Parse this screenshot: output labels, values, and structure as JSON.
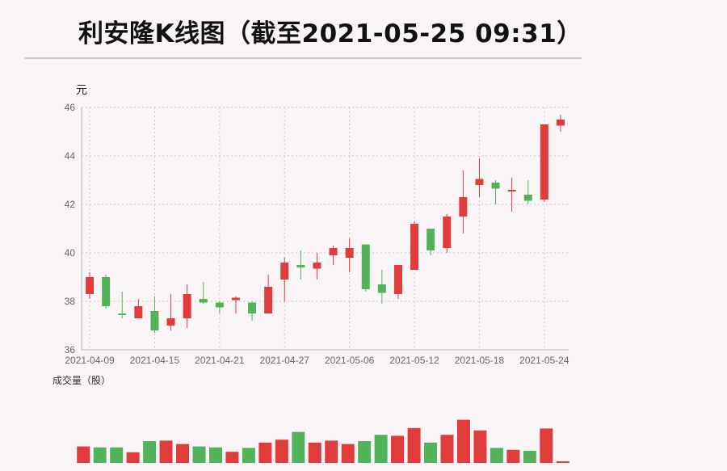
{
  "title": "利安隆K线图（截至2021-05-25 09:31）",
  "chart_data": {
    "type": "candlestick",
    "ylabel": "元",
    "volume_label": "成交量（股）",
    "ylim": [
      36,
      46
    ],
    "yticks": [
      36,
      38,
      40,
      42,
      44,
      46
    ],
    "xticks": [
      "2021-04-09",
      "2021-04-15",
      "2021-04-21",
      "2021-04-27",
      "2021-05-06",
      "2021-05-12",
      "2021-05-18",
      "2021-05-24"
    ],
    "colors": {
      "up": "#e03c3c",
      "down": "#52b35a"
    },
    "candles": [
      {
        "date": "2021-04-09",
        "open": 38.3,
        "close": 39.0,
        "high": 39.2,
        "low": 38.1
      },
      {
        "date": "2021-04-12",
        "open": 39.0,
        "close": 37.8,
        "high": 39.1,
        "low": 37.7
      },
      {
        "date": "2021-04-13",
        "open": 37.5,
        "close": 37.45,
        "high": 38.4,
        "low": 37.3
      },
      {
        "date": "2021-04-14",
        "open": 37.3,
        "close": 37.8,
        "high": 38.1,
        "low": 37.3
      },
      {
        "date": "2021-04-15",
        "open": 37.6,
        "close": 36.8,
        "high": 38.2,
        "low": 36.7
      },
      {
        "date": "2021-04-16",
        "open": 37.0,
        "close": 37.3,
        "high": 38.3,
        "low": 36.8
      },
      {
        "date": "2021-04-19",
        "open": 37.3,
        "close": 38.3,
        "high": 38.7,
        "low": 36.9
      },
      {
        "date": "2021-04-20",
        "open": 38.1,
        "close": 37.95,
        "high": 38.8,
        "low": 37.9
      },
      {
        "date": "2021-04-21",
        "open": 37.95,
        "close": 37.75,
        "high": 38.0,
        "low": 37.5
      },
      {
        "date": "2021-04-22",
        "open": 38.05,
        "close": 38.15,
        "high": 38.2,
        "low": 37.5
      },
      {
        "date": "2021-04-23",
        "open": 37.95,
        "close": 37.5,
        "high": 38.0,
        "low": 37.2
      },
      {
        "date": "2021-04-26",
        "open": 37.5,
        "close": 38.6,
        "high": 39.1,
        "low": 37.5
      },
      {
        "date": "2021-04-27",
        "open": 38.9,
        "close": 39.6,
        "high": 39.8,
        "low": 38.0
      },
      {
        "date": "2021-04-28",
        "open": 39.5,
        "close": 39.4,
        "high": 40.1,
        "low": 38.9
      },
      {
        "date": "2021-04-29",
        "open": 39.35,
        "close": 39.6,
        "high": 40.0,
        "low": 38.9
      },
      {
        "date": "2021-04-30",
        "open": 39.9,
        "close": 40.2,
        "high": 40.3,
        "low": 39.5
      },
      {
        "date": "2021-05-06",
        "open": 39.8,
        "close": 40.2,
        "high": 40.6,
        "low": 39.2
      },
      {
        "date": "2021-05-07",
        "open": 40.35,
        "close": 38.5,
        "high": 40.35,
        "low": 38.4
      },
      {
        "date": "2021-05-10",
        "open": 38.7,
        "close": 38.35,
        "high": 39.3,
        "low": 37.9
      },
      {
        "date": "2021-05-11",
        "open": 38.3,
        "close": 39.5,
        "high": 39.5,
        "low": 38.1
      },
      {
        "date": "2021-05-12",
        "open": 39.3,
        "close": 41.2,
        "high": 41.3,
        "low": 39.3
      },
      {
        "date": "2021-05-13",
        "open": 41.0,
        "close": 40.1,
        "high": 41.0,
        "low": 39.9
      },
      {
        "date": "2021-05-14",
        "open": 40.2,
        "close": 41.5,
        "high": 41.6,
        "low": 40.0
      },
      {
        "date": "2021-05-17",
        "open": 41.5,
        "close": 42.3,
        "high": 43.4,
        "low": 40.8
      },
      {
        "date": "2021-05-18",
        "open": 42.8,
        "close": 43.05,
        "high": 43.9,
        "low": 42.3
      },
      {
        "date": "2021-05-19",
        "open": 42.9,
        "close": 42.65,
        "high": 43.0,
        "low": 42.0
      },
      {
        "date": "2021-05-20",
        "open": 42.6,
        "close": 42.6,
        "high": 43.1,
        "low": 41.7
      },
      {
        "date": "2021-05-21",
        "open": 42.4,
        "close": 42.15,
        "high": 43.0,
        "low": 42.0
      },
      {
        "date": "2021-05-24",
        "open": 42.2,
        "close": 45.3,
        "high": 45.3,
        "low": 42.1
      },
      {
        "date": "2021-05-25",
        "open": 45.25,
        "close": 45.5,
        "high": 45.7,
        "low": 45.0
      }
    ],
    "volume_ylim": [
      0,
      1
    ],
    "volumes": [
      0.34,
      0.32,
      0.32,
      0.22,
      0.45,
      0.46,
      0.39,
      0.34,
      0.32,
      0.23,
      0.31,
      0.42,
      0.48,
      0.64,
      0.42,
      0.46,
      0.39,
      0.45,
      0.58,
      0.56,
      0.72,
      0.42,
      0.58,
      0.89,
      0.67,
      0.31,
      0.27,
      0.25,
      0.71,
      0.03
    ]
  }
}
